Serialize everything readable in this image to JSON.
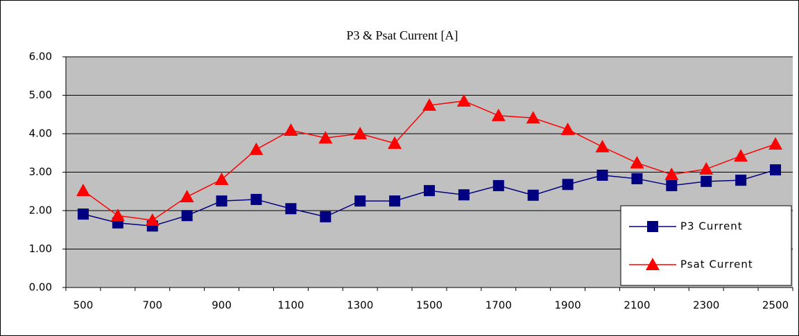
{
  "chart_data": {
    "type": "line",
    "title": "P3 & Psat Current [A]",
    "categories": [
      "500",
      null,
      "700",
      null,
      "900",
      null,
      "1100",
      null,
      "1300",
      null,
      "1500",
      null,
      "1700",
      null,
      "1900",
      null,
      "2100",
      null,
      "2300",
      null,
      "2500"
    ],
    "series": [
      {
        "name": "P3 Current",
        "color": "#000080",
        "marker": "square",
        "values": [
          1.91,
          1.68,
          1.6,
          1.87,
          2.25,
          2.29,
          2.05,
          1.84,
          2.25,
          2.25,
          2.52,
          2.41,
          2.65,
          2.4,
          2.68,
          2.92,
          2.83,
          2.65,
          2.76,
          2.79,
          3.06
        ]
      },
      {
        "name": "Psat Current",
        "color": "#ff0000",
        "marker": "triangle",
        "values": [
          2.52,
          1.87,
          1.75,
          2.36,
          2.81,
          3.59,
          4.09,
          3.89,
          4.0,
          3.75,
          4.74,
          4.85,
          4.47,
          4.41,
          4.11,
          3.66,
          3.24,
          2.94,
          3.08,
          3.42,
          3.73
        ]
      }
    ],
    "ylim": [
      0,
      6
    ],
    "yticks": [
      {
        "value": 0,
        "label": "0.00"
      },
      {
        "value": 1,
        "label": "1.00"
      },
      {
        "value": 2,
        "label": "2.00"
      },
      {
        "value": 3,
        "label": "3.00"
      },
      {
        "value": 4,
        "label": "4.00"
      },
      {
        "value": 5,
        "label": "5.00"
      },
      {
        "value": 6,
        "label": "6.00"
      }
    ],
    "grid": true,
    "plot_background": "#c0c0c0",
    "legend": "lower right"
  }
}
